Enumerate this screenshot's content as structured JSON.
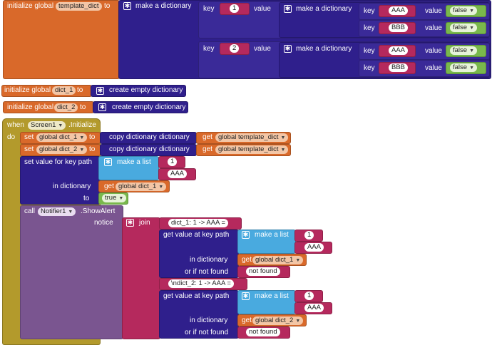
{
  "template": {
    "init_label": "initialize global",
    "var_name": "template_dict",
    "to_label": "to",
    "make_dict": "make a dictionary",
    "key_label": "key",
    "value_label": "value",
    "pairs": [
      {
        "key": "1",
        "inner": [
          {
            "key": "AAA",
            "value": "false"
          },
          {
            "key": "BBB",
            "value": "false"
          }
        ]
      },
      {
        "key": "2",
        "inner": [
          {
            "key": "AAA",
            "value": "false"
          },
          {
            "key": "BBB",
            "value": "false"
          }
        ]
      }
    ]
  },
  "dict1": {
    "init_label": "initialize global",
    "var_name": "dict_1",
    "to_label": "to",
    "create": "create empty dictionary"
  },
  "dict2": {
    "init_label": "initialize global",
    "var_name": "dict_2",
    "to_label": "to",
    "create": "create empty dictionary"
  },
  "event": {
    "when": "when",
    "component": "Screen1",
    "event_name": ".Initialize",
    "do": "do",
    "set1": {
      "set": "set",
      "var": "global dict_1",
      "to": "to",
      "copy": "copy dictionary",
      "dictionary": "dictionary",
      "get": "get",
      "source": "global template_dict"
    },
    "set2": {
      "set": "set",
      "var": "global dict_2",
      "to": "to",
      "copy": "copy dictionary",
      "dictionary": "dictionary",
      "get": "get",
      "source": "global template_dict"
    },
    "setkp": {
      "label": "set value for key path",
      "make_list": "make a list",
      "items": [
        "1",
        "AAA"
      ],
      "in_dictionary": "in dictionary",
      "get": "get",
      "var": "global dict_1",
      "to": "to",
      "value": "true"
    },
    "call": {
      "call": "call",
      "component": "Notifier1",
      "method": ".ShowAlert",
      "notice": "notice",
      "join": "join",
      "text1": "dict_1: 1 -> AAA = ",
      "text2": "\\ndict_2: 1 -> AAA = ",
      "getvalue": "get value at key path",
      "make_list": "make a list",
      "items": [
        "1",
        "AAA"
      ],
      "in_dictionary": "in dictionary",
      "if_not_found": "or if not found",
      "not_found": "not found",
      "get": "get",
      "var1": "global dict_1",
      "var2": "global dict_2"
    }
  }
}
